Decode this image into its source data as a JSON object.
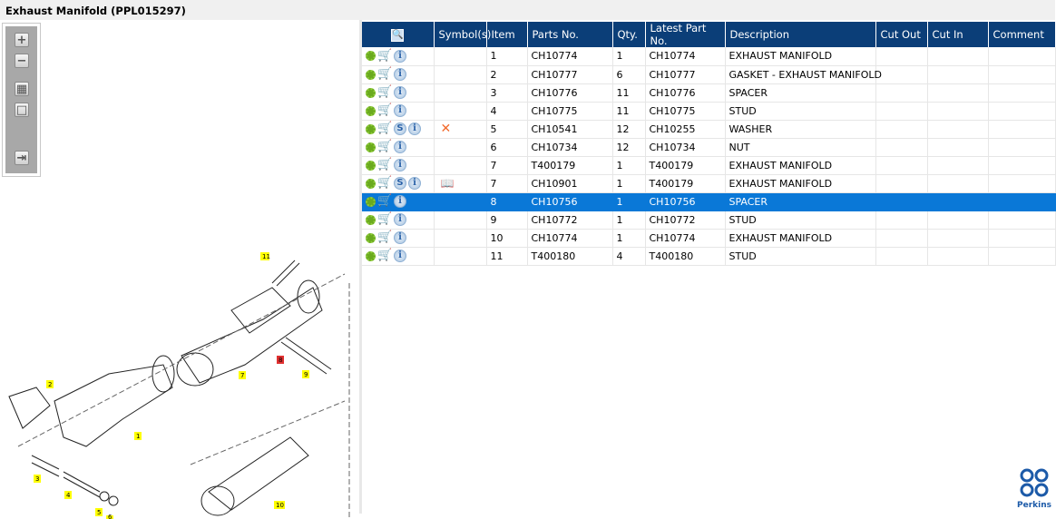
{
  "window": {
    "title": "Exhaust Manifold (PPL015297)"
  },
  "toolbar": {
    "zoom_in": "+",
    "zoom_out": "−",
    "fit": "▦",
    "actual": "□",
    "export": "⇥"
  },
  "diagram": {
    "callouts": [
      "1",
      "2",
      "3",
      "4",
      "5",
      "6",
      "7",
      "8",
      "9",
      "10",
      "11"
    ],
    "highlight_color": "#e03030",
    "callout_color": "#ffff00"
  },
  "table": {
    "headers": [
      "",
      "Symbol(s)",
      "Item",
      "Parts No.",
      "Qty.",
      "Latest Part No.",
      "Description",
      "Cut Out",
      "Cut In",
      "Comment"
    ],
    "rows": [
      {
        "s": false,
        "sym": "",
        "item": "1",
        "part": "CH10774",
        "qty": "1",
        "latest": "CH10774",
        "desc": "EXHAUST MANIFOLD"
      },
      {
        "s": false,
        "sym": "",
        "item": "2",
        "part": "CH10777",
        "qty": "6",
        "latest": "CH10777",
        "desc": "GASKET - EXHAUST MANIFOLD"
      },
      {
        "s": false,
        "sym": "",
        "item": "3",
        "part": "CH10776",
        "qty": "11",
        "latest": "CH10776",
        "desc": "SPACER"
      },
      {
        "s": false,
        "sym": "",
        "item": "4",
        "part": "CH10775",
        "qty": "11",
        "latest": "CH10775",
        "desc": "STUD"
      },
      {
        "s": true,
        "sym": "x",
        "item": "5",
        "part": "CH10541",
        "qty": "12",
        "latest": "CH10255",
        "desc": "WASHER"
      },
      {
        "s": false,
        "sym": "",
        "item": "6",
        "part": "CH10734",
        "qty": "12",
        "latest": "CH10734",
        "desc": "NUT"
      },
      {
        "s": false,
        "sym": "",
        "item": "7",
        "part": "T400179",
        "qty": "1",
        "latest": "T400179",
        "desc": "EXHAUST MANIFOLD"
      },
      {
        "s": true,
        "sym": "book",
        "item": "7",
        "part": "CH10901",
        "qty": "1",
        "latest": "T400179",
        "desc": "EXHAUST MANIFOLD"
      },
      {
        "s": false,
        "sym": "",
        "item": "8",
        "part": "CH10756",
        "qty": "1",
        "latest": "CH10756",
        "desc": "SPACER",
        "selected": true
      },
      {
        "s": false,
        "sym": "",
        "item": "9",
        "part": "CH10772",
        "qty": "1",
        "latest": "CH10772",
        "desc": "STUD"
      },
      {
        "s": false,
        "sym": "",
        "item": "10",
        "part": "CH10774",
        "qty": "1",
        "latest": "CH10774",
        "desc": "EXHAUST MANIFOLD"
      },
      {
        "s": false,
        "sym": "",
        "item": "11",
        "part": "T400180",
        "qty": "4",
        "latest": "T400180",
        "desc": "STUD"
      }
    ]
  },
  "logo": {
    "text": "Perkins"
  },
  "colors": {
    "header": "#0b3e78",
    "selected": "#0a78d7"
  }
}
